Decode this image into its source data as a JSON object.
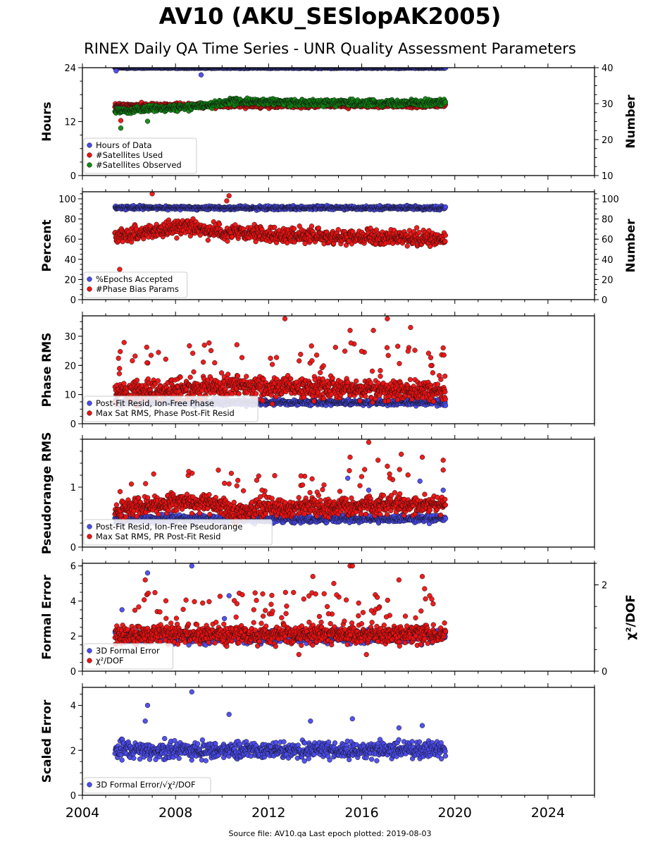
{
  "title": "AV10 (AKU_SESlopAK2005)",
  "subtitle": "RINEX Daily QA Time Series - UNR Quality Assessment Parameters",
  "source_note": "Source file: AV10.qa Last epoch plotted: 2019-08-03",
  "colors": {
    "blue": "#4a4aee",
    "red": "#ee1111",
    "green": "#118811",
    "edge": "#111111"
  },
  "chart_data": [
    {
      "type": "scatter",
      "panel": "hours-satellites",
      "xlim": [
        2004,
        2026
      ],
      "ylabel": "Hours",
      "ylim": [
        0,
        24
      ],
      "yticks": [
        "0",
        "12",
        "24"
      ],
      "ylabel_right": "Number",
      "ylim_right": [
        10,
        40
      ],
      "yticks_right": [
        "10",
        "20",
        "30",
        "40"
      ],
      "legend_position": "lower-left",
      "series": [
        {
          "name": "Hours of Data",
          "color": "blue",
          "axis": "left",
          "x_range": [
            2005.4,
            2019.6
          ],
          "base": 23.95,
          "noise": 0.1,
          "outliers": [
            [
              2005.45,
              23.3
            ],
            [
              2009.1,
              22.4
            ]
          ]
        },
        {
          "name": "#Satellites Used",
          "color": "red",
          "axis": "right",
          "x_range": [
            2005.4,
            2019.6
          ],
          "base": 29.5,
          "noise": 0.5,
          "outliers": [
            [
              2005.65,
              25.3
            ],
            [
              2009.5,
              30.1
            ]
          ]
        },
        {
          "name": "#Satellites Observed",
          "color": "green",
          "axis": "right",
          "x_range": [
            2005.4,
            2019.6
          ],
          "trend": [
            [
              2005.4,
              28.0
            ],
            [
              2007.0,
              28.6
            ],
            [
              2009.0,
              29.3
            ],
            [
              2010.5,
              30.6
            ],
            [
              2013.0,
              30.4
            ],
            [
              2016.0,
              30.2
            ],
            [
              2019.6,
              30.3
            ]
          ],
          "noise": 0.7,
          "outliers": [
            [
              2005.65,
              23.2
            ],
            [
              2006.8,
              25.1
            ]
          ]
        }
      ]
    },
    {
      "type": "scatter",
      "panel": "percent-bias",
      "xlim": [
        2004,
        2026
      ],
      "ylabel": "Percent",
      "ylim": [
        0,
        107
      ],
      "yticks": [
        "0",
        "20",
        "40",
        "60",
        "80",
        "100"
      ],
      "ylabel_right": "Number",
      "ylim_right": [
        0,
        107
      ],
      "yticks_right": [
        "0",
        "20",
        "40",
        "60",
        "80",
        "100"
      ],
      "legend_position": "lower-left",
      "series": [
        {
          "name": "%Epochs Accepted",
          "color": "blue",
          "axis": "left",
          "x_range": [
            2005.4,
            2019.6
          ],
          "base": 91,
          "noise": 1.5
        },
        {
          "name": "#Phase Bias Params",
          "color": "red",
          "axis": "right",
          "x_range": [
            2005.4,
            2019.6
          ],
          "trend": [
            [
              2005.4,
              62
            ],
            [
              2007.0,
              68
            ],
            [
              2008.5,
              73
            ],
            [
              2010.0,
              67
            ],
            [
              2012.0,
              64
            ],
            [
              2016.0,
              62
            ],
            [
              2019.6,
              60
            ]
          ],
          "noise": 6,
          "outliers": [
            [
              2005.6,
              30
            ],
            [
              2007.0,
              105
            ],
            [
              2010.3,
              103
            ],
            [
              2010.2,
              98
            ]
          ]
        }
      ]
    },
    {
      "type": "scatter",
      "panel": "phase-rms",
      "xlim": [
        2004,
        2026
      ],
      "ylabel": "Phase RMS",
      "ylim": [
        0,
        37
      ],
      "yticks": [
        "0",
        "10",
        "20",
        "30"
      ],
      "legend_position": "lower-left",
      "series": [
        {
          "name": "Post-Fit Resid, Ion-Free Phase",
          "color": "blue",
          "axis": "left",
          "x_range": [
            2005.4,
            2019.6
          ],
          "base": 7.3,
          "noise": 0.8
        },
        {
          "name": "Max Sat RMS, Phase Post-Fit Resid",
          "color": "red",
          "axis": "left",
          "x_range": [
            2005.4,
            2019.6
          ],
          "trend": [
            [
              2005.4,
              11
            ],
            [
              2008.0,
              12
            ],
            [
              2011.0,
              13
            ],
            [
              2014.0,
              12
            ],
            [
              2019.6,
              11
            ]
          ],
          "noise": 3,
          "spike_count": 60,
          "spike_range": [
            16,
            28
          ],
          "outliers": [
            [
              2012.7,
              36
            ],
            [
              2017.1,
              36
            ],
            [
              2016.5,
              32
            ],
            [
              2018.1,
              33
            ],
            [
              2015.5,
              32
            ],
            [
              2019.5,
              26
            ]
          ]
        }
      ]
    },
    {
      "type": "scatter",
      "panel": "pseudorange-rms",
      "xlim": [
        2004,
        2026
      ],
      "ylabel": "Pseudorange RMS",
      "ylim": [
        0,
        1.8
      ],
      "yticks": [
        "0",
        "1"
      ],
      "legend_position": "lower-left",
      "series": [
        {
          "name": "Post-Fit Resid, Ion-Free Pseudorange",
          "color": "blue",
          "axis": "left",
          "x_range": [
            2005.4,
            2019.6
          ],
          "base": 0.47,
          "noise": 0.05,
          "outliers": [
            [
              2015.4,
              1.15
            ],
            [
              2016.3,
              0.95
            ],
            [
              2018.5,
              1.1
            ],
            [
              2019.5,
              0.95
            ]
          ]
        },
        {
          "name": "Max Sat RMS, PR Post-Fit Resid",
          "color": "red",
          "axis": "left",
          "x_range": [
            2005.4,
            2019.6
          ],
          "trend": [
            [
              2005.4,
              0.62
            ],
            [
              2008.0,
              0.75
            ],
            [
              2010.0,
              0.72
            ],
            [
              2010.4,
              0.58
            ],
            [
              2012.0,
              0.68
            ],
            [
              2014.0,
              0.65
            ],
            [
              2016.0,
              0.7
            ],
            [
              2019.6,
              0.72
            ]
          ],
          "noise": 0.12,
          "spike_count": 40,
          "spike_range": [
            0.9,
            1.3
          ],
          "outliers": [
            [
              2016.3,
              1.75
            ],
            [
              2017.7,
              1.55
            ],
            [
              2015.5,
              1.5
            ],
            [
              2018.6,
              1.5
            ],
            [
              2019.5,
              1.45
            ],
            [
              2016.7,
              1.45
            ],
            [
              2017.1,
              1.35
            ]
          ]
        }
      ]
    },
    {
      "type": "scatter",
      "panel": "formal-error",
      "xlim": [
        2004,
        2026
      ],
      "ylabel": "Formal Error",
      "ylim": [
        0,
        6.15
      ],
      "yticks": [
        "0",
        "2",
        "4",
        "6"
      ],
      "ylabel_right": "χ²/DOF",
      "ylim_right": [
        0,
        2.5
      ],
      "yticks_right": [
        "0",
        "2"
      ],
      "legend_position": "lower-left",
      "series": [
        {
          "name": "3D Formal Error",
          "color": "blue",
          "axis": "left",
          "x_range": [
            2005.4,
            2019.6
          ],
          "base": 2.0,
          "noise": 0.3,
          "outliers": [
            [
              2006.8,
              5.6
            ],
            [
              2008.7,
              6.0
            ],
            [
              2010.3,
              4.3
            ],
            [
              2010.1,
              3.0
            ],
            [
              2005.7,
              3.5
            ]
          ]
        },
        {
          "name": "χ²/DOF",
          "color": "red",
          "axis": "left",
          "x_range": [
            2005.4,
            2019.6
          ],
          "base": 2.1,
          "noise": 0.45,
          "spike_count": 70,
          "spike_range": [
            3.0,
            4.5
          ],
          "outliers": [
            [
              2006.7,
              5.2
            ],
            [
              2013.9,
              5.4
            ],
            [
              2015.5,
              6.0
            ],
            [
              2015.6,
              6.0
            ],
            [
              2017.6,
              5.2
            ],
            [
              2018.6,
              5.4
            ],
            [
              2014.8,
              5.0
            ],
            [
              2018.7,
              4.7
            ],
            [
              2013.3,
              0.95
            ],
            [
              2016.2,
              0.95
            ]
          ]
        }
      ]
    },
    {
      "type": "scatter",
      "panel": "scaled-error",
      "xlim": [
        2004,
        2026
      ],
      "ylabel": "Scaled Error",
      "ylim": [
        0,
        4.8
      ],
      "yticks": [
        "0",
        "2",
        "4"
      ],
      "xticks": [
        "2004",
        "2008",
        "2012",
        "2016",
        "2020",
        "2024"
      ],
      "legend_position": "lower-left",
      "series": [
        {
          "name": "3D Formal Error/√χ²/DOF",
          "color": "blue",
          "axis": "left",
          "x_range": [
            2005.4,
            2019.6
          ],
          "base": 2.0,
          "noise": 0.3,
          "outliers": [
            [
              2008.7,
              4.6
            ],
            [
              2006.8,
              4.0
            ],
            [
              2010.3,
              3.6
            ],
            [
              2006.7,
              3.3
            ],
            [
              2015.6,
              3.4
            ],
            [
              2013.8,
              3.3
            ],
            [
              2018.6,
              3.1
            ],
            [
              2017.6,
              3.0
            ]
          ]
        }
      ]
    }
  ]
}
